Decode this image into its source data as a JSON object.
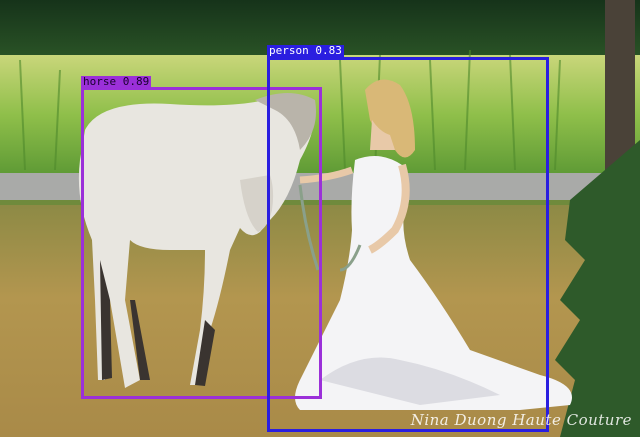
{
  "detections": [
    {
      "label": "horse 0.89",
      "color": "#9b30d9",
      "text_color": "#1a0030"
    },
    {
      "label": "person 0.83",
      "color": "#2a1ee0",
      "text_color": "#ffffff"
    }
  ],
  "watermark": "Nina Duong Haute Couture",
  "colors": {
    "field": "#b89a55",
    "grass": "#a9c95a",
    "road": "#a9aaa8",
    "trees": "#1f4a20",
    "horse": "#e8e6e0",
    "dress": "#f4f4f6"
  }
}
